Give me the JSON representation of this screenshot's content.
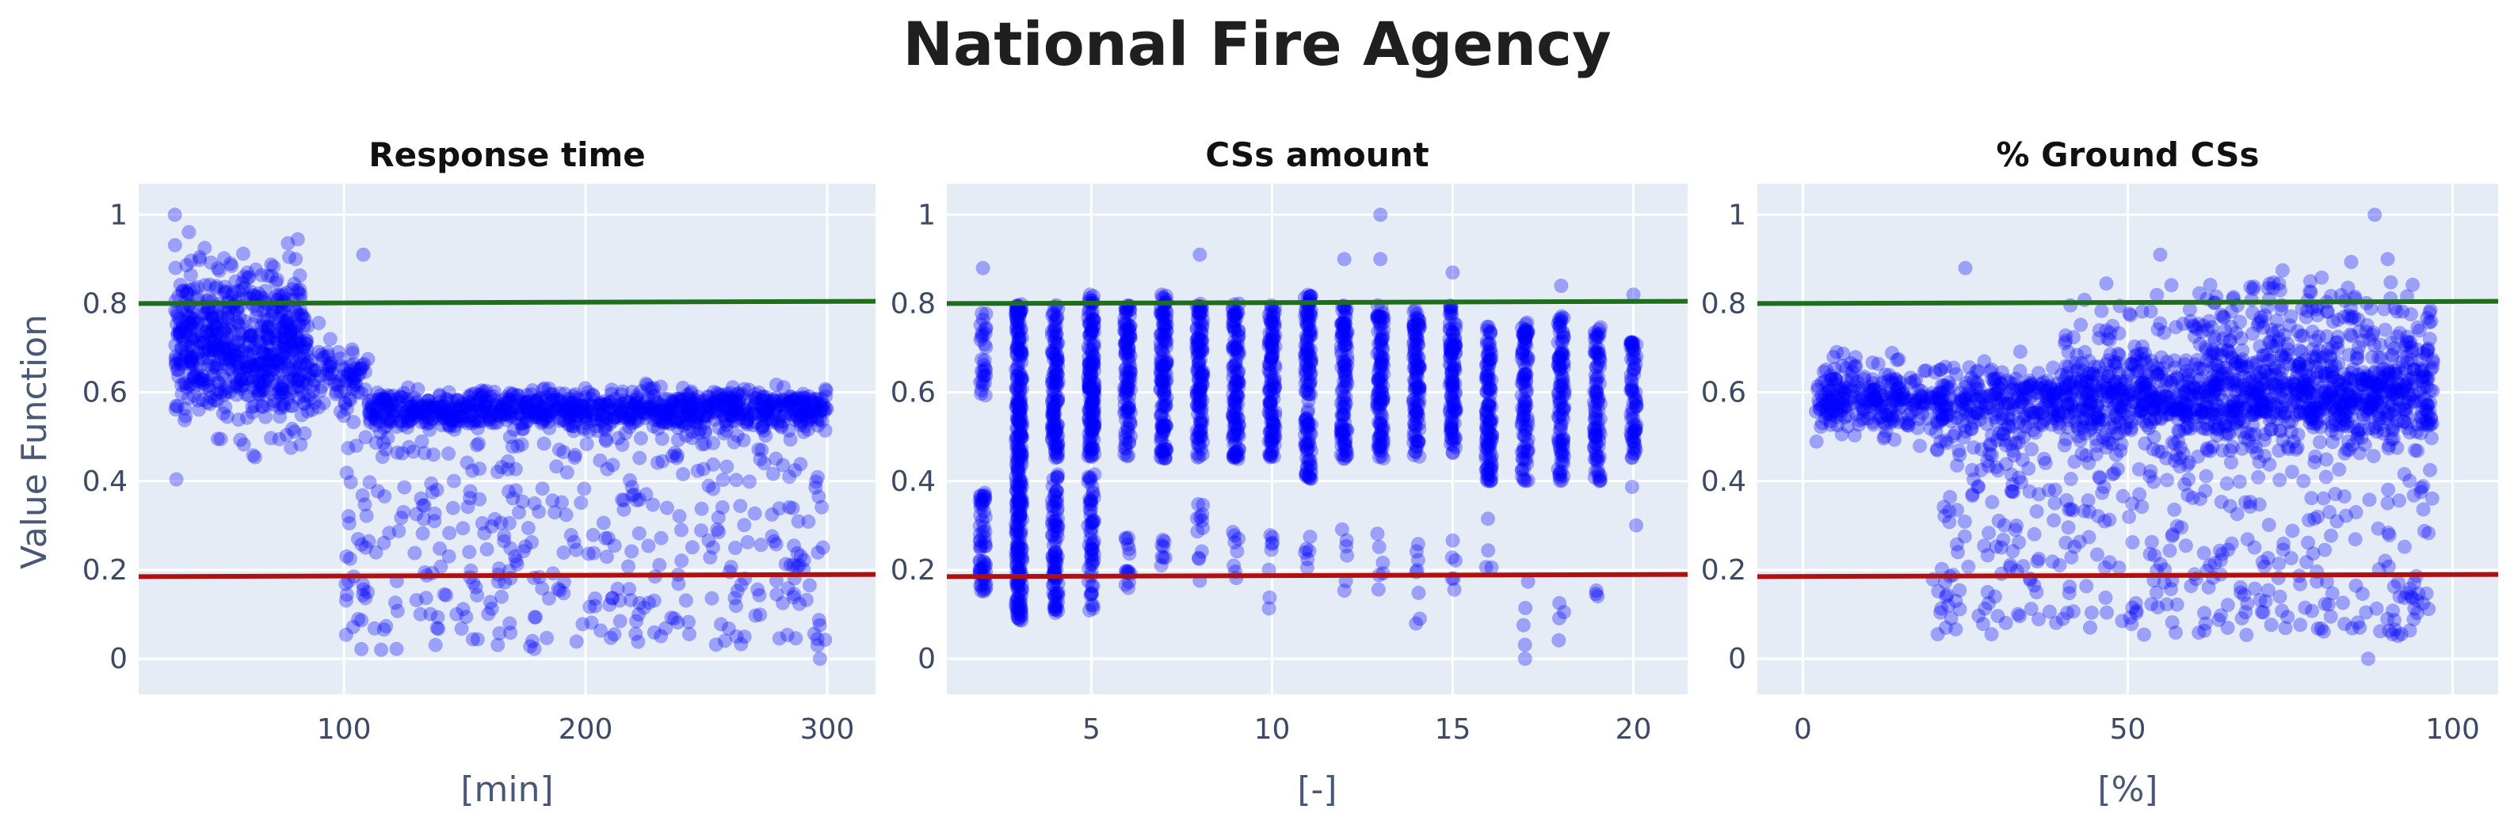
{
  "title": "National Fire Agency",
  "ylabel": "Value Function",
  "reference_lines": [
    {
      "color": "#1e6e1e",
      "y_left": 0.8,
      "y_right": 0.805
    },
    {
      "color": "#b01010",
      "y_left": 0.185,
      "y_right": 0.19
    }
  ],
  "chart_data": [
    {
      "type": "scatter",
      "title": "Response time",
      "xlabel": "[min]",
      "ylabel": "Value Function",
      "xlim": [
        15,
        320
      ],
      "ylim": [
        -0.08,
        1.07
      ],
      "xticks": [
        100,
        200,
        300
      ],
      "xticklabels": [
        "100",
        "200",
        "300"
      ],
      "yticks": [
        0,
        0.2,
        0.4,
        0.6,
        0.8,
        1
      ],
      "yticklabels": [
        "0",
        "0.2",
        "0.4",
        "0.6",
        "0.8",
        "1"
      ],
      "marker_color": "#0000ff",
      "marker_opacity": 0.32,
      "grid": true,
      "points_cluster": [
        {
          "x_range": [
            30,
            85
          ],
          "y_center": 0.7,
          "y_spread": 0.085,
          "n": 650
        },
        {
          "x_range": [
            85,
            110
          ],
          "y_center": 0.63,
          "y_spread": 0.04,
          "n": 90
        },
        {
          "x_range": [
            110,
            300
          ],
          "y_center": 0.56,
          "y_spread": 0.022,
          "n": 950
        }
      ],
      "points_sparse": [
        {
          "x_range": [
            100,
            300
          ],
          "y_range": [
            0.02,
            0.5
          ],
          "n": 380
        }
      ],
      "points": [
        {
          "x": 30,
          "y": 1.0
        },
        {
          "x": 108,
          "y": 0.91
        },
        {
          "x": 80,
          "y": 0.9
        },
        {
          "x": 53,
          "y": 0.89
        },
        {
          "x": 60,
          "y": 0.87
        },
        {
          "x": 297,
          "y": 0.0
        },
        {
          "x": 296,
          "y": 0.03
        },
        {
          "x": 178,
          "y": 0.04
        }
      ]
    },
    {
      "type": "scatter",
      "title": "CSs amount",
      "xlabel": "[-]",
      "ylabel": "",
      "xlim": [
        1,
        21.5
      ],
      "ylim": [
        -0.08,
        1.07
      ],
      "xticks": [
        5,
        10,
        15,
        20
      ],
      "xticklabels": [
        "5",
        "10",
        "15",
        "20"
      ],
      "yticks": [
        0,
        0.2,
        0.4,
        0.6,
        0.8,
        1
      ],
      "yticklabels": [
        "0",
        "0.2",
        "0.4",
        "0.6",
        "0.8",
        "1"
      ],
      "marker_color": "#0000ff",
      "marker_opacity": 0.32,
      "grid": true,
      "columns": [
        {
          "x": 2,
          "upper": [
            0.58,
            0.78
          ],
          "lower": [
            0.15,
            0.38
          ],
          "n_upper": 30,
          "n_lower": 60
        },
        {
          "x": 3,
          "upper": [
            0.45,
            0.8
          ],
          "lower": [
            0.08,
            0.45
          ],
          "n_upper": 150,
          "n_lower": 150
        },
        {
          "x": 4,
          "upper": [
            0.45,
            0.8
          ],
          "lower": [
            0.1,
            0.42
          ],
          "n_upper": 120,
          "n_lower": 90
        },
        {
          "x": 5,
          "upper": [
            0.45,
            0.82
          ],
          "lower": [
            0.1,
            0.42
          ],
          "n_upper": 150,
          "n_lower": 60
        },
        {
          "x": 6,
          "upper": [
            0.45,
            0.8
          ],
          "lower": [
            0.15,
            0.3
          ],
          "n_upper": 110,
          "n_lower": 15
        },
        {
          "x": 7,
          "upper": [
            0.45,
            0.82
          ],
          "lower": [
            0.2,
            0.28
          ],
          "n_upper": 130,
          "n_lower": 8
        },
        {
          "x": 8,
          "upper": [
            0.45,
            0.8
          ],
          "lower": [
            0.15,
            0.35
          ],
          "n_upper": 120,
          "n_lower": 12
        },
        {
          "x": 9,
          "upper": [
            0.45,
            0.8
          ],
          "lower": [
            0.15,
            0.3
          ],
          "n_upper": 120,
          "n_lower": 8
        },
        {
          "x": 10,
          "upper": [
            0.45,
            0.8
          ],
          "lower": [
            0.1,
            0.3
          ],
          "n_upper": 120,
          "n_lower": 8
        },
        {
          "x": 11,
          "upper": [
            0.4,
            0.82
          ],
          "lower": [
            0.2,
            0.3
          ],
          "n_upper": 130,
          "n_lower": 6
        },
        {
          "x": 12,
          "upper": [
            0.45,
            0.8
          ],
          "lower": [
            0.15,
            0.3
          ],
          "n_upper": 110,
          "n_lower": 6
        },
        {
          "x": 13,
          "upper": [
            0.45,
            0.8
          ],
          "lower": [
            0.1,
            0.3
          ],
          "n_upper": 110,
          "n_lower": 6
        },
        {
          "x": 14,
          "upper": [
            0.45,
            0.8
          ],
          "lower": [
            0.05,
            0.3
          ],
          "n_upper": 110,
          "n_lower": 8
        },
        {
          "x": 15,
          "upper": [
            0.45,
            0.8
          ],
          "lower": [
            0.07,
            0.3
          ],
          "n_upper": 110,
          "n_lower": 6
        },
        {
          "x": 16,
          "upper": [
            0.4,
            0.75
          ],
          "lower": [
            0.2,
            0.32
          ],
          "n_upper": 110,
          "n_lower": 4
        },
        {
          "x": 17,
          "upper": [
            0.4,
            0.76
          ],
          "lower": [
            0.0,
            0.2
          ],
          "n_upper": 100,
          "n_lower": 4
        },
        {
          "x": 18,
          "upper": [
            0.4,
            0.78
          ],
          "lower": [
            0.03,
            0.15
          ],
          "n_upper": 100,
          "n_lower": 4
        },
        {
          "x": 19,
          "upper": [
            0.4,
            0.75
          ],
          "lower": [
            0.14,
            0.16
          ],
          "n_upper": 90,
          "n_lower": 3
        },
        {
          "x": 20,
          "upper": [
            0.45,
            0.72
          ],
          "lower": [
            0.3,
            0.4
          ],
          "n_upper": 70,
          "n_lower": 2
        }
      ],
      "points": [
        {
          "x": 2,
          "y": 0.88
        },
        {
          "x": 8,
          "y": 0.91
        },
        {
          "x": 12,
          "y": 0.9
        },
        {
          "x": 13,
          "y": 1.0
        },
        {
          "x": 13,
          "y": 0.9
        },
        {
          "x": 15,
          "y": 0.87
        },
        {
          "x": 20,
          "y": 0.82
        },
        {
          "x": 17,
          "y": 0.0
        },
        {
          "x": 18,
          "y": 0.84
        }
      ]
    },
    {
      "type": "scatter",
      "title": "% Ground CSs",
      "xlabel": "[%]",
      "ylabel": "",
      "xlim": [
        -7,
        107
      ],
      "ylim": [
        -0.08,
        1.07
      ],
      "xticks": [
        0,
        50,
        100
      ],
      "xticklabels": [
        "0",
        "50",
        "100"
      ],
      "yticks": [
        0,
        0.2,
        0.4,
        0.6,
        0.8,
        1
      ],
      "yticklabels": [
        "0",
        "0.2",
        "0.4",
        "0.6",
        "0.8",
        "1"
      ],
      "marker_color": "#0000ff",
      "marker_opacity": 0.32,
      "grid": true,
      "points_cluster": [
        {
          "x_range": [
            2,
            97
          ],
          "y_center": 0.58,
          "y_spread": 0.04,
          "n": 1300
        },
        {
          "x_range": [
            40,
            97
          ],
          "y_center": 0.66,
          "y_spread": 0.08,
          "n": 350
        }
      ],
      "points_sparse": [
        {
          "x_range": [
            20,
            97
          ],
          "y_range": [
            0.05,
            0.5
          ],
          "n": 420
        },
        {
          "x_range": [
            60,
            97
          ],
          "y_range": [
            0.6,
            0.85
          ],
          "n": 160
        }
      ],
      "points": [
        {
          "x": 88,
          "y": 1.0
        },
        {
          "x": 87,
          "y": 0.0
        },
        {
          "x": 55,
          "y": 0.91
        },
        {
          "x": 22,
          "y": 0.07
        },
        {
          "x": 25,
          "y": 0.88
        },
        {
          "x": 90,
          "y": 0.9
        }
      ]
    }
  ]
}
